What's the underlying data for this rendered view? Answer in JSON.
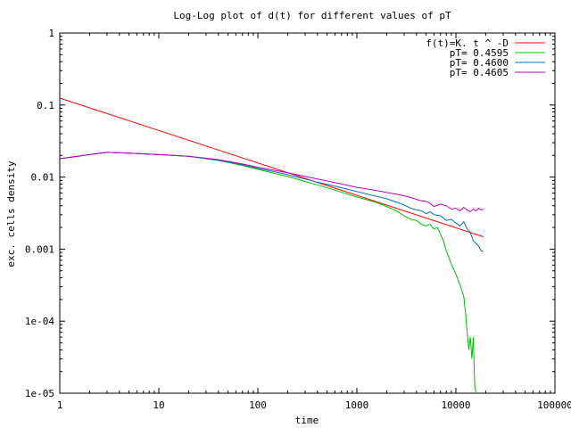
{
  "chart_data": {
    "type": "line",
    "title": "Log-Log plot of d(t) for different values of pT",
    "xlabel": "time",
    "ylabel": "exc. cells density",
    "x_scale": "log",
    "y_scale": "log",
    "xlim": [
      1,
      100000
    ],
    "ylim": [
      1e-05,
      1
    ],
    "x_ticks": [
      1,
      10,
      100,
      1000,
      10000,
      100000
    ],
    "x_tick_labels": [
      "1",
      "10",
      "100",
      "1000",
      "10000",
      "100000"
    ],
    "y_ticks": [
      1,
      0.1,
      0.01,
      0.001,
      0.0001,
      1e-05
    ],
    "y_tick_labels": [
      "1",
      "0.1",
      "0.01",
      "0.001",
      "1e-04",
      "1e-05"
    ],
    "grid": false,
    "legend_position": "top-right",
    "series": [
      {
        "name": "f(t)=K. t ^ -D",
        "color": "#ff0000",
        "points": [
          [
            1,
            0.125
          ],
          [
            19000,
            0.00148
          ]
        ]
      },
      {
        "name": "pT= 0.4595",
        "color": "#00c000",
        "points": [
          [
            1,
            0.018
          ],
          [
            2,
            0.0205
          ],
          [
            3,
            0.022
          ],
          [
            5,
            0.0215
          ],
          [
            10,
            0.0205
          ],
          [
            20,
            0.0195
          ],
          [
            40,
            0.017
          ],
          [
            70,
            0.0145
          ],
          [
            100,
            0.0128
          ],
          [
            150,
            0.0112
          ],
          [
            200,
            0.0102
          ],
          [
            300,
            0.0087
          ],
          [
            400,
            0.0078
          ],
          [
            600,
            0.0066
          ],
          [
            800,
            0.0058
          ],
          [
            1000,
            0.0053
          ],
          [
            1300,
            0.0048
          ],
          [
            1600,
            0.0044
          ],
          [
            2000,
            0.0039
          ],
          [
            2500,
            0.0034
          ],
          [
            3000,
            0.0029
          ],
          [
            3500,
            0.0026
          ],
          [
            4000,
            0.0025
          ],
          [
            4500,
            0.0022
          ],
          [
            5000,
            0.0021
          ],
          [
            5500,
            0.0022
          ],
          [
            6000,
            0.0019
          ],
          [
            6500,
            0.002
          ],
          [
            7000,
            0.0016
          ],
          [
            7500,
            0.0013
          ],
          [
            8000,
            0.00095
          ],
          [
            9000,
            0.00062
          ],
          [
            10000,
            0.00045
          ],
          [
            11000,
            0.00032
          ],
          [
            12000,
            0.00022
          ],
          [
            12500,
            0.00013
          ],
          [
            13000,
            7e-05
          ],
          [
            13500,
            4e-05
          ],
          [
            14000,
            6e-05
          ],
          [
            14500,
            3e-05
          ],
          [
            15000,
            6e-05
          ],
          [
            15500,
            1.25e-05
          ],
          [
            16000,
            1e-05
          ]
        ]
      },
      {
        "name": "pT= 0.4600",
        "color": "#0070c0",
        "points": [
          [
            1,
            0.018
          ],
          [
            2,
            0.0205
          ],
          [
            3,
            0.022
          ],
          [
            5,
            0.0215
          ],
          [
            10,
            0.0205
          ],
          [
            20,
            0.0195
          ],
          [
            40,
            0.0172
          ],
          [
            70,
            0.0148
          ],
          [
            100,
            0.0132
          ],
          [
            150,
            0.0118
          ],
          [
            200,
            0.0108
          ],
          [
            300,
            0.0094
          ],
          [
            400,
            0.0085
          ],
          [
            600,
            0.0075
          ],
          [
            800,
            0.0068
          ],
          [
            1000,
            0.0063
          ],
          [
            1500,
            0.0055
          ],
          [
            2000,
            0.005
          ],
          [
            2500,
            0.0045
          ],
          [
            3000,
            0.0041
          ],
          [
            3500,
            0.0037
          ],
          [
            4000,
            0.0035
          ],
          [
            4500,
            0.0034
          ],
          [
            5000,
            0.0031
          ],
          [
            5500,
            0.0033
          ],
          [
            6000,
            0.003
          ],
          [
            7000,
            0.0029
          ],
          [
            8000,
            0.0025
          ],
          [
            9000,
            0.0026
          ],
          [
            10000,
            0.0023
          ],
          [
            11000,
            0.0021
          ],
          [
            12000,
            0.0024
          ],
          [
            13000,
            0.0019
          ],
          [
            14000,
            0.0017
          ],
          [
            15000,
            0.0013
          ],
          [
            16000,
            0.0012
          ],
          [
            17000,
            0.0011
          ],
          [
            18000,
            0.00095
          ],
          [
            19000,
            0.00092
          ]
        ]
      },
      {
        "name": "pT= 0.4605",
        "color": "#c000c0",
        "points": [
          [
            1,
            0.018
          ],
          [
            2,
            0.0205
          ],
          [
            3,
            0.022
          ],
          [
            5,
            0.0215
          ],
          [
            10,
            0.0205
          ],
          [
            20,
            0.0195
          ],
          [
            40,
            0.0175
          ],
          [
            70,
            0.0152
          ],
          [
            100,
            0.0137
          ],
          [
            150,
            0.0124
          ],
          [
            200,
            0.0115
          ],
          [
            300,
            0.0102
          ],
          [
            400,
            0.0094
          ],
          [
            600,
            0.0084
          ],
          [
            800,
            0.0077
          ],
          [
            1000,
            0.0072
          ],
          [
            1500,
            0.0066
          ],
          [
            2000,
            0.0061
          ],
          [
            2500,
            0.0058
          ],
          [
            3000,
            0.0055
          ],
          [
            3500,
            0.0052
          ],
          [
            4000,
            0.0049
          ],
          [
            4500,
            0.0047
          ],
          [
            5000,
            0.0046
          ],
          [
            5500,
            0.0043
          ],
          [
            6000,
            0.0039
          ],
          [
            7000,
            0.0042
          ],
          [
            8000,
            0.004
          ],
          [
            9000,
            0.0036
          ],
          [
            10000,
            0.0037
          ],
          [
            11000,
            0.0034
          ],
          [
            12000,
            0.0038
          ],
          [
            13000,
            0.0035
          ],
          [
            14000,
            0.0033
          ],
          [
            15000,
            0.0036
          ],
          [
            16000,
            0.0034
          ],
          [
            17000,
            0.0037
          ],
          [
            18000,
            0.0035
          ],
          [
            19000,
            0.0036
          ]
        ]
      }
    ]
  }
}
